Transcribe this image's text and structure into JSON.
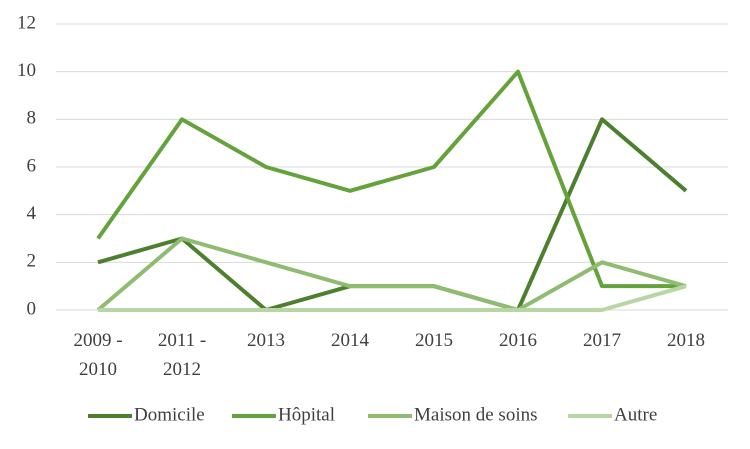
{
  "chart_data": {
    "type": "line",
    "categories": [
      "2009 - 2010",
      "2011 - 2012",
      "2013",
      "2014",
      "2015",
      "2016",
      "2017",
      "2018"
    ],
    "series": [
      {
        "name": "Domicile",
        "color": "#4c7f2e",
        "values": [
          2,
          3,
          0,
          1,
          1,
          0,
          8,
          5
        ]
      },
      {
        "name": "Hôpital",
        "color": "#64a33c",
        "values": [
          3,
          8,
          6,
          5,
          6,
          10,
          1,
          1
        ]
      },
      {
        "name": "Maison de soins",
        "color": "#8fbc70",
        "values": [
          0,
          3,
          2,
          1,
          1,
          0,
          2,
          1
        ]
      },
      {
        "name": "Autre",
        "color": "#b8d6a3",
        "values": [
          0,
          0,
          0,
          0,
          0,
          0,
          0,
          1
        ]
      }
    ],
    "ylim": [
      0,
      12
    ],
    "yticks": [
      0,
      2,
      4,
      6,
      8,
      10,
      12
    ],
    "grid": true,
    "legend": "bottom"
  }
}
